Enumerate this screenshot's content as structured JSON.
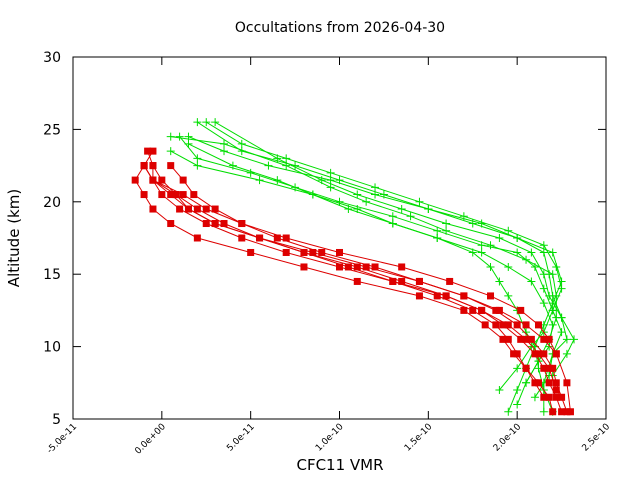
{
  "chart_data": {
    "type": "line",
    "title": "Occultations from 2026-04-30",
    "xlabel": "CFC11 VMR",
    "ylabel": "Altitude (km)",
    "xlim": [
      -5e-11,
      2.5e-10
    ],
    "ylim": [
      5,
      30
    ],
    "x_ticks": [
      "-5.0e-11",
      "0.0e+00",
      "5.0e-11",
      "1.0e-10",
      "1.5e-10",
      "2.0e-10",
      "2.5e-10"
    ],
    "y_ticks": [
      "5",
      "10",
      "15",
      "20",
      "25",
      "30"
    ],
    "grid": false,
    "legend": "none",
    "colors": {
      "green_series": "#00dd00",
      "red_series": "#dd0000"
    },
    "series": [
      {
        "color": "#00dd00",
        "marker": "plus",
        "points": [
          [
            2.2e-10,
            5.5
          ],
          [
            2.15e-10,
            7.0
          ],
          [
            2.12e-10,
            8.5
          ],
          [
            2.1e-10,
            10.0
          ],
          [
            2.05e-10,
            11.0
          ],
          [
            2e-10,
            12.5
          ],
          [
            1.95e-10,
            13.5
          ],
          [
            1.9e-10,
            14.5
          ],
          [
            1.85e-10,
            15.5
          ],
          [
            1.75e-10,
            16.5
          ],
          [
            1.55e-10,
            17.5
          ],
          [
            1.3e-10,
            18.5
          ],
          [
            1.05e-10,
            19.5
          ],
          [
            8.5e-11,
            20.5
          ],
          [
            6.5e-11,
            21.5
          ],
          [
            4e-11,
            22.5
          ],
          [
            1.5e-11,
            24.0
          ]
        ]
      },
      {
        "color": "#00dd00",
        "marker": "plus",
        "points": [
          [
            1.95e-10,
            5.5
          ],
          [
            2e-10,
            7.0
          ],
          [
            2.05e-10,
            8.5
          ],
          [
            2.1e-10,
            10.0
          ],
          [
            2.15e-10,
            11.5
          ],
          [
            2.2e-10,
            13.0
          ],
          [
            2.25e-10,
            14.5
          ],
          [
            2.2e-10,
            16.5
          ],
          [
            2e-10,
            17.5
          ],
          [
            1.8e-10,
            18.5
          ],
          [
            1.5e-10,
            19.5
          ],
          [
            1.25e-10,
            20.5
          ],
          [
            1e-10,
            21.5
          ],
          [
            7.5e-11,
            22.5
          ],
          [
            4.5e-11,
            23.5
          ],
          [
            2e-11,
            25.5
          ]
        ]
      },
      {
        "color": "#00dd00",
        "marker": "plus",
        "points": [
          [
            2.1e-10,
            6.5
          ],
          [
            2.18e-10,
            8.0
          ],
          [
            2.2e-10,
            9.5
          ],
          [
            2.28e-10,
            10.5
          ],
          [
            2.25e-10,
            12.0
          ],
          [
            2.18e-10,
            13.5
          ],
          [
            2.15e-10,
            15.0
          ],
          [
            2.08e-10,
            16.5
          ],
          [
            1.9e-10,
            17.5
          ],
          [
            1.6e-10,
            18.5
          ],
          [
            1.35e-10,
            19.5
          ],
          [
            1.1e-10,
            20.5
          ],
          [
            9e-11,
            21.5
          ],
          [
            6.5e-11,
            23.0
          ],
          [
            3e-11,
            25.5
          ]
        ]
      },
      {
        "color": "#00dd00",
        "marker": "plus",
        "points": [
          [
            2.05e-10,
            7.5
          ],
          [
            2.12e-10,
            9.0
          ],
          [
            2.18e-10,
            10.5
          ],
          [
            2.22e-10,
            12.0
          ],
          [
            2.22e-10,
            13.5
          ],
          [
            2.2e-10,
            15.0
          ],
          [
            2.05e-10,
            16.0
          ],
          [
            1.85e-10,
            17.0
          ],
          [
            1.6e-10,
            18.0
          ],
          [
            1.4e-10,
            19.0
          ],
          [
            1.15e-10,
            20.0
          ],
          [
            9.5e-11,
            21.0
          ],
          [
            7e-11,
            22.5
          ],
          [
            3.5e-11,
            24.0
          ],
          [
            5e-12,
            24.5
          ]
        ]
      },
      {
        "color": "#00dd00",
        "marker": "plus",
        "points": [
          [
            2.15e-10,
            5.5
          ],
          [
            2.15e-10,
            7.5
          ],
          [
            2.2e-10,
            9.5
          ],
          [
            2.25e-10,
            11.0
          ],
          [
            2.2e-10,
            12.5
          ],
          [
            2.15e-10,
            14.0
          ],
          [
            2.1e-10,
            15.5
          ],
          [
            2e-10,
            16.5
          ],
          [
            1.8e-10,
            17.0
          ],
          [
            1.55e-10,
            18.0
          ],
          [
            1.3e-10,
            19.0
          ],
          [
            1e-10,
            20.0
          ],
          [
            7.5e-11,
            21.0
          ],
          [
            5e-11,
            22.0
          ],
          [
            2e-11,
            23.0
          ],
          [
            1e-11,
            24.5
          ]
        ]
      },
      {
        "color": "#00dd00",
        "marker": "plus",
        "points": [
          [
            1.9e-10,
            7.0
          ],
          [
            2e-10,
            8.5
          ],
          [
            2.08e-10,
            10.0
          ],
          [
            2.15e-10,
            11.0
          ],
          [
            2.2e-10,
            12.5
          ],
          [
            2.25e-10,
            14.0
          ],
          [
            2.22e-10,
            15.5
          ],
          [
            2.15e-10,
            17.0
          ],
          [
            1.95e-10,
            18.0
          ],
          [
            1.7e-10,
            19.0
          ],
          [
            1.45e-10,
            20.0
          ],
          [
            1.2e-10,
            21.0
          ],
          [
            9.5e-11,
            22.0
          ],
          [
            7e-11,
            23.0
          ],
          [
            4.5e-11,
            24.0
          ],
          [
            2.5e-11,
            25.5
          ]
        ]
      },
      {
        "color": "#00dd00",
        "marker": "plus",
        "points": [
          [
            2e-10,
            6.0
          ],
          [
            2.05e-10,
            7.5
          ],
          [
            2.12e-10,
            9.0
          ],
          [
            2.18e-10,
            10.0
          ],
          [
            2.2e-10,
            11.5
          ],
          [
            2.15e-10,
            13.0
          ],
          [
            2.08e-10,
            14.5
          ],
          [
            1.95e-10,
            15.5
          ],
          [
            1.8e-10,
            16.5
          ],
          [
            1.55e-10,
            17.5
          ],
          [
            1.3e-10,
            18.5
          ],
          [
            1.1e-10,
            19.5
          ],
          [
            8.5e-11,
            20.5
          ],
          [
            5.5e-11,
            21.5
          ],
          [
            2e-11,
            22.5
          ],
          [
            5e-12,
            23.5
          ]
        ]
      },
      {
        "color": "#00dd00",
        "marker": "plus",
        "points": [
          [
            2.2e-10,
            8.0
          ],
          [
            2.28e-10,
            9.5
          ],
          [
            2.32e-10,
            10.5
          ],
          [
            2.25e-10,
            12.0
          ],
          [
            2.2e-10,
            13.5
          ],
          [
            2.18e-10,
            15.0
          ],
          [
            2.15e-10,
            16.5
          ],
          [
            2e-10,
            17.5
          ],
          [
            1.75e-10,
            18.5
          ],
          [
            1.5e-10,
            19.5
          ],
          [
            1.2e-10,
            20.5
          ],
          [
            9.5e-11,
            21.5
          ],
          [
            6e-11,
            22.5
          ],
          [
            3.5e-11,
            23.5
          ],
          [
            1.5e-11,
            24.5
          ]
        ]
      },
      {
        "color": "#dd0000",
        "marker": "square",
        "points": [
          [
            2.2e-10,
            5.5
          ],
          [
            2.18e-10,
            6.5
          ],
          [
            2.12e-10,
            7.5
          ],
          [
            2.05e-10,
            8.5
          ],
          [
            1.98e-10,
            9.5
          ],
          [
            1.92e-10,
            10.5
          ],
          [
            1.82e-10,
            11.5
          ],
          [
            1.7e-10,
            12.5
          ],
          [
            1.45e-10,
            13.5
          ],
          [
            1.1e-10,
            14.5
          ],
          [
            8e-11,
            15.5
          ],
          [
            5e-11,
            16.5
          ],
          [
            2e-11,
            17.5
          ],
          [
            5e-12,
            18.5
          ],
          [
            -5e-12,
            19.5
          ],
          [
            -1e-11,
            20.5
          ],
          [
            -1.5e-11,
            21.5
          ],
          [
            -1e-11,
            22.5
          ],
          [
            -5e-12,
            23.5
          ]
        ]
      },
      {
        "color": "#dd0000",
        "marker": "square",
        "points": [
          [
            2.25e-10,
            5.5
          ],
          [
            2.22e-10,
            6.5
          ],
          [
            2.18e-10,
            7.5
          ],
          [
            2.15e-10,
            8.5
          ],
          [
            2.1e-10,
            9.5
          ],
          [
            2.02e-10,
            10.5
          ],
          [
            1.92e-10,
            11.5
          ],
          [
            1.8e-10,
            12.5
          ],
          [
            1.6e-10,
            13.5
          ],
          [
            1.3e-10,
            14.5
          ],
          [
            1e-10,
            15.5
          ],
          [
            7e-11,
            16.5
          ],
          [
            4.5e-11,
            17.5
          ],
          [
            2.5e-11,
            18.5
          ],
          [
            1e-11,
            19.5
          ],
          [
            0.0,
            20.5
          ],
          [
            -5e-12,
            21.5
          ],
          [
            -5e-12,
            22.5
          ],
          [
            -8e-12,
            23.5
          ]
        ]
      },
      {
        "color": "#dd0000",
        "marker": "square",
        "points": [
          [
            2.28e-10,
            5.5
          ],
          [
            2.25e-10,
            6.5
          ],
          [
            2.22e-10,
            7.5
          ],
          [
            2.2e-10,
            8.5
          ],
          [
            2.15e-10,
            9.5
          ],
          [
            2.08e-10,
            10.5
          ],
          [
            2e-10,
            11.5
          ],
          [
            1.88e-10,
            12.5
          ],
          [
            1.7e-10,
            13.5
          ],
          [
            1.45e-10,
            14.5
          ],
          [
            1.15e-10,
            15.5
          ],
          [
            8.5e-11,
            16.5
          ],
          [
            5.5e-11,
            17.5
          ],
          [
            3e-11,
            18.5
          ],
          [
            1.5e-11,
            19.5
          ],
          [
            8e-12,
            20.5
          ],
          [
            0.0,
            21.5
          ],
          [
            -5e-12,
            22.5
          ]
        ]
      },
      {
        "color": "#dd0000",
        "marker": "square",
        "points": [
          [
            2.3e-10,
            5.5
          ],
          [
            2.28e-10,
            7.5
          ],
          [
            2.22e-10,
            9.5
          ],
          [
            2.18e-10,
            10.5
          ],
          [
            2.12e-10,
            11.5
          ],
          [
            2.02e-10,
            12.5
          ],
          [
            1.85e-10,
            13.5
          ],
          [
            1.62e-10,
            14.5
          ],
          [
            1.35e-10,
            15.5
          ],
          [
            1e-10,
            16.5
          ],
          [
            7e-11,
            17.5
          ],
          [
            4.5e-11,
            18.5
          ],
          [
            3e-11,
            19.5
          ],
          [
            1.8e-11,
            20.5
          ],
          [
            1.2e-11,
            21.5
          ],
          [
            5e-12,
            22.5
          ]
        ]
      },
      {
        "color": "#dd0000",
        "marker": "square",
        "points": [
          [
            2.15e-10,
            6.5
          ],
          [
            2.1e-10,
            7.5
          ],
          [
            2.05e-10,
            8.5
          ],
          [
            2e-10,
            9.5
          ],
          [
            1.95e-10,
            10.5
          ],
          [
            1.88e-10,
            11.5
          ],
          [
            1.75e-10,
            12.5
          ],
          [
            1.55e-10,
            13.5
          ],
          [
            1.3e-10,
            14.5
          ],
          [
            1.05e-10,
            15.5
          ],
          [
            8e-11,
            16.5
          ],
          [
            5.5e-11,
            17.5
          ],
          [
            3.5e-11,
            18.5
          ],
          [
            2e-11,
            19.5
          ],
          [
            8e-12,
            20.5
          ],
          [
            -5e-12,
            21.5
          ],
          [
            -1e-11,
            22.5
          ]
        ]
      },
      {
        "color": "#dd0000",
        "marker": "square",
        "points": [
          [
            2.22e-10,
            7.0
          ],
          [
            2.18e-10,
            8.5
          ],
          [
            2.12e-10,
            9.5
          ],
          [
            2.05e-10,
            10.5
          ],
          [
            1.95e-10,
            11.5
          ],
          [
            1.8e-10,
            12.5
          ],
          [
            1.6e-10,
            13.5
          ],
          [
            1.35e-10,
            14.5
          ],
          [
            1.1e-10,
            15.5
          ],
          [
            8e-11,
            16.5
          ],
          [
            5.5e-11,
            17.5
          ],
          [
            3e-11,
            18.5
          ],
          [
            1.5e-11,
            19.5
          ],
          [
            5e-12,
            20.5
          ],
          [
            -5e-12,
            21.5
          ],
          [
            -1e-11,
            22.5
          ]
        ]
      },
      {
        "color": "#dd0000",
        "marker": "square",
        "points": [
          [
            2.22e-10,
            9.5
          ],
          [
            2.15e-10,
            10.5
          ],
          [
            2.05e-10,
            11.5
          ],
          [
            1.9e-10,
            12.5
          ],
          [
            1.7e-10,
            13.5
          ],
          [
            1.45e-10,
            14.5
          ],
          [
            1.2e-10,
            15.5
          ],
          [
            9e-11,
            16.5
          ],
          [
            6.5e-11,
            17.5
          ],
          [
            4.5e-11,
            18.5
          ],
          [
            2.5e-11,
            19.5
          ],
          [
            1.2e-11,
            20.5
          ],
          [
            -5e-12,
            21.5
          ],
          [
            -1e-11,
            22.5
          ]
        ]
      }
    ]
  }
}
